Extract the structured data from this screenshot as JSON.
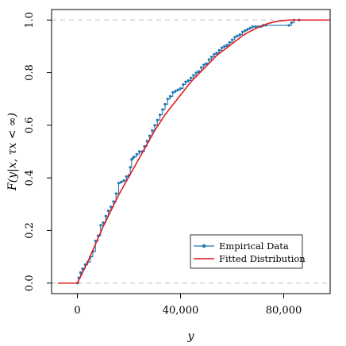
{
  "chart_data": {
    "type": "line",
    "xlabel": "y",
    "ylabel": "F(y|x, τx < ∞)",
    "xlim": [
      -10000,
      98000
    ],
    "ylim": [
      -0.04,
      1.04
    ],
    "x_ticks": [
      0,
      40000,
      80000
    ],
    "x_tick_labels": [
      "0",
      "40,000",
      "80,000"
    ],
    "y_ticks": [
      0.0,
      0.2,
      0.4,
      0.6,
      0.8,
      1.0
    ],
    "y_tick_labels": [
      "0.0",
      "0.2",
      "0.4",
      "0.6",
      "0.8",
      "1.0"
    ],
    "reference_lines": [
      0,
      1
    ],
    "grid": false,
    "legend_position": "bottom-right",
    "colors": {
      "empirical": "#1f77b4",
      "fitted": "#e31a1c",
      "reference": "#bdbdbd",
      "axis": "#000000"
    },
    "series": [
      {
        "name": "Empirical Data",
        "kind": "step",
        "marker": "point",
        "x": [
          -7500,
          0,
          500,
          1200,
          2000,
          3000,
          4000,
          5000,
          6000,
          7000,
          8000,
          9000,
          10000,
          11000,
          12000,
          13000,
          14000,
          15000,
          16000,
          17000,
          18000,
          19000,
          20000,
          20500,
          21000,
          21500,
          22000,
          23000,
          24000,
          25000,
          26000,
          27000,
          28000,
          29000,
          30000,
          31000,
          32000,
          33000,
          34000,
          35000,
          36000,
          37000,
          38000,
          39000,
          40000,
          41000,
          42000,
          43000,
          44000,
          45000,
          46000,
          47000,
          48000,
          49000,
          50000,
          51000,
          52000,
          53000,
          54000,
          55000,
          56000,
          57000,
          58000,
          59000,
          60000,
          61000,
          62000,
          63000,
          64000,
          65000,
          66000,
          67000,
          68000,
          69000,
          70000,
          71000,
          72000,
          73000,
          82000,
          83000,
          84000,
          86000,
          98000
        ],
        "y": [
          0.0,
          0.0,
          0.02,
          0.04,
          0.055,
          0.07,
          0.08,
          0.1,
          0.12,
          0.16,
          0.18,
          0.22,
          0.23,
          0.255,
          0.275,
          0.29,
          0.31,
          0.34,
          0.38,
          0.385,
          0.39,
          0.405,
          0.41,
          0.44,
          0.47,
          0.475,
          0.48,
          0.49,
          0.5,
          0.5,
          0.52,
          0.54,
          0.56,
          0.58,
          0.6,
          0.62,
          0.64,
          0.66,
          0.68,
          0.7,
          0.71,
          0.725,
          0.73,
          0.735,
          0.74,
          0.755,
          0.765,
          0.77,
          0.78,
          0.79,
          0.8,
          0.805,
          0.82,
          0.83,
          0.835,
          0.85,
          0.86,
          0.87,
          0.875,
          0.885,
          0.895,
          0.9,
          0.905,
          0.915,
          0.925,
          0.935,
          0.94,
          0.945,
          0.955,
          0.96,
          0.965,
          0.97,
          0.975,
          0.975,
          0.975,
          0.975,
          0.98,
          0.98,
          0.98,
          0.99,
          1.0,
          1.0,
          1.0
        ]
      },
      {
        "name": "Fitted Distribution",
        "kind": "line",
        "x": [
          -7500,
          0,
          2000,
          4000,
          6000,
          8000,
          10000,
          12000,
          14000,
          16000,
          18000,
          20000,
          22000,
          24000,
          26000,
          28000,
          30000,
          32000,
          34000,
          36000,
          38000,
          40000,
          42000,
          44000,
          46000,
          48000,
          50000,
          52000,
          54000,
          56000,
          58000,
          60000,
          62000,
          64000,
          66000,
          68000,
          70000,
          72000,
          74000,
          76000,
          78000,
          80000,
          82000,
          84000,
          90000,
          98000
        ],
        "y": [
          0.0,
          0.0,
          0.04,
          0.08,
          0.125,
          0.17,
          0.215,
          0.255,
          0.295,
          0.335,
          0.37,
          0.405,
          0.44,
          0.475,
          0.51,
          0.545,
          0.58,
          0.61,
          0.64,
          0.665,
          0.69,
          0.715,
          0.74,
          0.765,
          0.785,
          0.805,
          0.825,
          0.845,
          0.865,
          0.88,
          0.895,
          0.91,
          0.925,
          0.94,
          0.952,
          0.962,
          0.972,
          0.98,
          0.987,
          0.992,
          0.996,
          0.998,
          1.0,
          1.0,
          1.0,
          1.0
        ]
      }
    ]
  }
}
